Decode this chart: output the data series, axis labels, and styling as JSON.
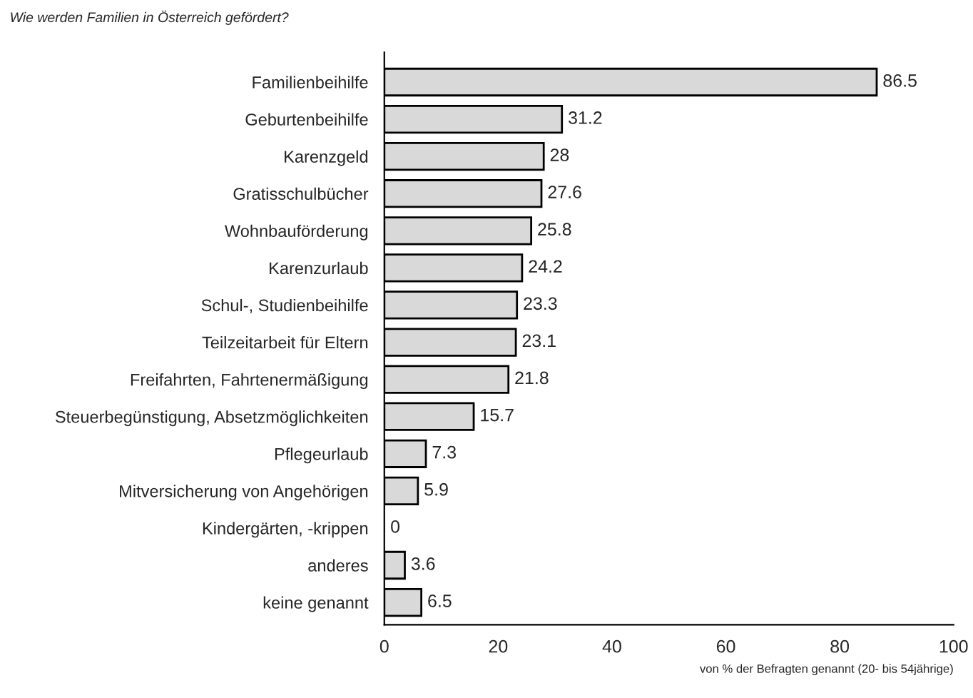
{
  "chart_data": {
    "type": "bar",
    "orientation": "horizontal",
    "title": "Wie werden Familien in Österreich gefördert?",
    "xlabel": "von % der Befragten genannt (20- bis 54jährige)",
    "categories": [
      "Familienbeihilfe",
      "Geburtenbeihilfe",
      "Karenzgeld",
      "Gratisschulbücher",
      "Wohnbauförderung",
      "Karenzurlaub",
      "Schul-, Studienbeihilfe",
      "Teilzeitarbeit für Eltern",
      "Freifahrten, Fahrtenermäßigung",
      "Steuerbegünstigung, Absetzmöglichkeiten",
      "Pflegeurlaub",
      "Mitversicherung von Angehörigen",
      "Kindergärten, -krippen",
      "anderes",
      "keine genannt"
    ],
    "values": [
      86.5,
      31.2,
      28,
      27.6,
      25.8,
      24.2,
      23.3,
      23.1,
      21.8,
      15.7,
      7.3,
      5.9,
      0,
      3.6,
      6.5
    ],
    "color": "#d9d9d9",
    "xlim": [
      0,
      100
    ],
    "xticks": [
      0,
      20,
      40,
      60,
      80,
      100
    ],
    "data_labels": true,
    "grid": false,
    "legend": false
  }
}
